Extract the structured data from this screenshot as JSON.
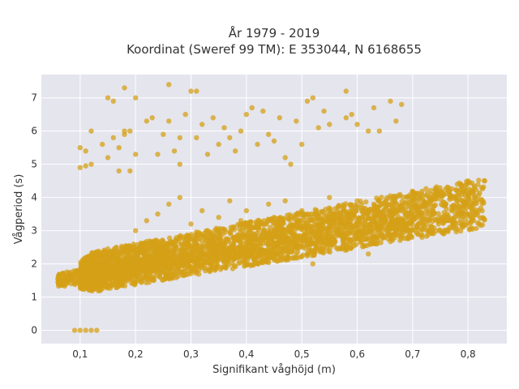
{
  "chart_data": {
    "type": "scatter",
    "title_lines": [
      "År 1979 - 2019",
      "Koordinat (Sweref 99 TM): E 353044, N 6168655"
    ],
    "xlabel": "Signifikant våghöjd (m)",
    "ylabel": "Vågperiod (s)",
    "xlim": [
      0.03,
      0.87
    ],
    "ylim": [
      -0.4,
      7.7
    ],
    "x_ticks": [
      0.1,
      0.2,
      0.3,
      0.4,
      0.5,
      0.6,
      0.7,
      0.8
    ],
    "x_tick_labels": [
      "0,1",
      "0,2",
      "0,3",
      "0,4",
      "0,5",
      "0,6",
      "0,7",
      "0,8"
    ],
    "y_ticks": [
      0,
      1,
      2,
      3,
      4,
      5,
      6,
      7
    ],
    "y_tick_labels": [
      "0",
      "1",
      "2",
      "3",
      "4",
      "5",
      "6",
      "7"
    ],
    "grid": true,
    "marker_color": "#d4a017",
    "plot_background": "#e5e5ee",
    "main_cloud": {
      "description_lines": [
        {
          "x": [
            0.06,
            0.72
          ],
          "y_lower": [
            1.3,
            3.0
          ],
          "y_upper": [
            1.7,
            4.0
          ]
        },
        {
          "x": [
            0.1,
            0.83
          ],
          "y_lower": [
            1.1,
            3.1
          ],
          "y_upper": [
            2.3,
            4.6
          ]
        }
      ]
    },
    "points": [
      [
        0.09,
        0.0
      ],
      [
        0.1,
        0.0
      ],
      [
        0.11,
        0.0
      ],
      [
        0.12,
        0.0
      ],
      [
        0.13,
        0.0
      ],
      [
        0.06,
        1.45
      ],
      [
        0.06,
        1.55
      ],
      [
        0.07,
        1.5
      ],
      [
        0.08,
        1.6
      ],
      [
        0.09,
        1.55
      ],
      [
        0.1,
        1.7
      ],
      [
        0.12,
        1.4
      ],
      [
        0.12,
        2.0
      ],
      [
        0.14,
        1.25
      ],
      [
        0.15,
        1.3
      ],
      [
        0.1,
        4.9
      ],
      [
        0.11,
        4.95
      ],
      [
        0.11,
        5.4
      ],
      [
        0.1,
        5.5
      ],
      [
        0.12,
        5.0
      ],
      [
        0.12,
        6.0
      ],
      [
        0.14,
        5.6
      ],
      [
        0.15,
        5.2
      ],
      [
        0.15,
        7.0
      ],
      [
        0.16,
        6.9
      ],
      [
        0.16,
        5.8
      ],
      [
        0.17,
        4.8
      ],
      [
        0.17,
        5.5
      ],
      [
        0.18,
        7.3
      ],
      [
        0.18,
        6.0
      ],
      [
        0.18,
        5.9
      ],
      [
        0.19,
        4.8
      ],
      [
        0.19,
        6.0
      ],
      [
        0.2,
        5.3
      ],
      [
        0.2,
        7.0
      ],
      [
        0.22,
        6.3
      ],
      [
        0.23,
        6.4
      ],
      [
        0.24,
        5.3
      ],
      [
        0.25,
        5.9
      ],
      [
        0.26,
        6.3
      ],
      [
        0.26,
        7.4
      ],
      [
        0.27,
        5.4
      ],
      [
        0.28,
        5.8
      ],
      [
        0.28,
        5.0
      ],
      [
        0.29,
        6.5
      ],
      [
        0.3,
        7.2
      ],
      [
        0.31,
        7.2
      ],
      [
        0.31,
        5.8
      ],
      [
        0.32,
        6.2
      ],
      [
        0.33,
        5.3
      ],
      [
        0.34,
        6.4
      ],
      [
        0.35,
        5.6
      ],
      [
        0.36,
        6.1
      ],
      [
        0.37,
        5.8
      ],
      [
        0.38,
        5.4
      ],
      [
        0.39,
        6.0
      ],
      [
        0.4,
        6.5
      ],
      [
        0.41,
        6.7
      ],
      [
        0.42,
        5.6
      ],
      [
        0.43,
        6.6
      ],
      [
        0.44,
        5.9
      ],
      [
        0.45,
        5.7
      ],
      [
        0.46,
        6.4
      ],
      [
        0.47,
        5.2
      ],
      [
        0.48,
        5.0
      ],
      [
        0.49,
        6.3
      ],
      [
        0.5,
        5.6
      ],
      [
        0.51,
        6.9
      ],
      [
        0.52,
        7.0
      ],
      [
        0.53,
        6.1
      ],
      [
        0.54,
        6.6
      ],
      [
        0.55,
        6.2
      ],
      [
        0.58,
        7.2
      ],
      [
        0.58,
        6.4
      ],
      [
        0.59,
        6.5
      ],
      [
        0.6,
        6.2
      ],
      [
        0.62,
        6.0
      ],
      [
        0.63,
        6.7
      ],
      [
        0.64,
        6.0
      ],
      [
        0.66,
        6.9
      ],
      [
        0.67,
        6.3
      ],
      [
        0.68,
        6.8
      ],
      [
        0.16,
        2.3
      ],
      [
        0.17,
        2.0
      ],
      [
        0.18,
        2.4
      ],
      [
        0.19,
        2.2
      ],
      [
        0.2,
        3.0
      ],
      [
        0.2,
        1.9
      ],
      [
        0.21,
        2.6
      ],
      [
        0.22,
        3.3
      ],
      [
        0.23,
        2.1
      ],
      [
        0.24,
        3.5
      ],
      [
        0.25,
        2.4
      ],
      [
        0.26,
        3.8
      ],
      [
        0.27,
        2.6
      ],
      [
        0.28,
        4.0
      ],
      [
        0.29,
        2.7
      ],
      [
        0.3,
        3.2
      ],
      [
        0.31,
        2.9
      ],
      [
        0.32,
        3.6
      ],
      [
        0.33,
        3.0
      ],
      [
        0.34,
        2.2
      ],
      [
        0.35,
        3.4
      ],
      [
        0.36,
        2.6
      ],
      [
        0.37,
        3.9
      ],
      [
        0.38,
        2.8
      ],
      [
        0.39,
        3.3
      ],
      [
        0.4,
        3.6
      ],
      [
        0.41,
        2.6
      ],
      [
        0.42,
        3.1
      ],
      [
        0.43,
        2.4
      ],
      [
        0.44,
        3.8
      ],
      [
        0.45,
        3.4
      ],
      [
        0.46,
        2.6
      ],
      [
        0.47,
        3.9
      ],
      [
        0.48,
        3.2
      ],
      [
        0.49,
        2.2
      ],
      [
        0.5,
        3.6
      ],
      [
        0.51,
        3.0
      ],
      [
        0.52,
        2.0
      ],
      [
        0.53,
        3.4
      ],
      [
        0.54,
        2.5
      ],
      [
        0.55,
        4.0
      ],
      [
        0.56,
        3.2
      ],
      [
        0.57,
        2.9
      ],
      [
        0.58,
        3.4
      ],
      [
        0.6,
        3.9
      ],
      [
        0.61,
        3.0
      ],
      [
        0.62,
        2.3
      ],
      [
        0.63,
        3.8
      ],
      [
        0.64,
        3.5
      ],
      [
        0.65,
        2.8
      ],
      [
        0.66,
        3.2
      ],
      [
        0.67,
        4.0
      ],
      [
        0.68,
        3.6
      ],
      [
        0.69,
        3.1
      ],
      [
        0.7,
        3.8
      ],
      [
        0.71,
        3.5
      ],
      [
        0.72,
        3.9
      ],
      [
        0.73,
        3.3
      ],
      [
        0.74,
        4.1
      ],
      [
        0.75,
        4.2
      ],
      [
        0.76,
        3.8
      ],
      [
        0.77,
        3.6
      ],
      [
        0.78,
        3.9
      ],
      [
        0.79,
        3.7
      ],
      [
        0.8,
        4.5
      ],
      [
        0.81,
        4.1
      ],
      [
        0.83,
        4.5
      ]
    ]
  }
}
